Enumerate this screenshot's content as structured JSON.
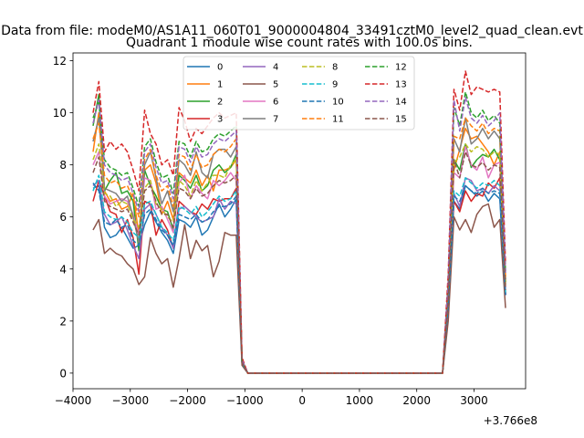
{
  "suptitle": "Data from file: modeM0/AS1A11_060T01_9000004804_33491cztM0_level2_quad_clean.evt",
  "chart_data": {
    "type": "line",
    "title": "Quadrant 1 module wise count rates with 100.0s bins.",
    "xlabel": "",
    "ylabel": "",
    "x_offset_label": "+3.766e8",
    "xlim": [
      -4000,
      3900
    ],
    "ylim": [
      -0.6,
      12.3
    ],
    "xticks": [
      -4000,
      -3000,
      -2000,
      -1000,
      0,
      1000,
      2000,
      3000
    ],
    "xtick_labels": [
      "−4000",
      "−3000",
      "−2000",
      "−1000",
      "0",
      "1000",
      "2000",
      "3000"
    ],
    "yticks": [
      0,
      2,
      4,
      6,
      8,
      10,
      12
    ],
    "ytick_labels": [
      "0",
      "2",
      "4",
      "6",
      "8",
      "10",
      "12"
    ],
    "legend_position": "top-center",
    "legend_ncol": 4,
    "x": [
      -3650,
      -3550,
      -3450,
      -3350,
      -3250,
      -3150,
      -3050,
      -2950,
      -2850,
      -2750,
      -2650,
      -2550,
      -2450,
      -2350,
      -2250,
      -2150,
      -2050,
      -1950,
      -1850,
      -1750,
      -1650,
      -1550,
      -1450,
      -1350,
      -1250,
      -1150,
      -1050,
      -950,
      -850,
      2450,
      2550,
      2650,
      2750,
      2850,
      2950,
      3050,
      3150,
      3250,
      3350,
      3450,
      3550
    ],
    "series": [
      {
        "name": "0",
        "color": "#1f77b4",
        "dash": "solid",
        "values": [
          7.1,
          7.2,
          5.6,
          5.2,
          5.3,
          5.6,
          5.2,
          4.8,
          4.9,
          5.7,
          6.2,
          5.8,
          5.4,
          5.1,
          4.6,
          5.9,
          5.8,
          5.6,
          6.0,
          5.3,
          5.5,
          6.0,
          6.5,
          6.0,
          6.3,
          6.7,
          0.4,
          0,
          0,
          0,
          2.5,
          6.6,
          6.3,
          7.2,
          7.0,
          6.8,
          7.0,
          6.6,
          6.9,
          6.7,
          3.0
        ]
      },
      {
        "name": "1",
        "color": "#ff7f0e",
        "dash": "solid",
        "values": [
          8.5,
          10.0,
          7.0,
          6.6,
          6.7,
          6.3,
          6.4,
          6.9,
          5.3,
          7.8,
          8.0,
          7.3,
          6.1,
          6.6,
          5.9,
          7.7,
          7.5,
          7.3,
          7.8,
          7.2,
          7.6,
          7.0,
          7.8,
          7.8,
          7.9,
          8.2,
          0.5,
          0,
          0,
          0,
          3.0,
          7.8,
          8.6,
          9.4,
          9.0,
          9.1,
          8.8,
          8.5,
          8.0,
          8.5,
          3.5
        ]
      },
      {
        "name": "2",
        "color": "#2ca02c",
        "dash": "solid",
        "values": [
          9.5,
          10.7,
          7.0,
          7.4,
          7.7,
          6.9,
          7.0,
          6.6,
          4.7,
          7.8,
          7.2,
          6.8,
          6.3,
          6.2,
          5.5,
          7.6,
          7.4,
          7.1,
          7.6,
          7.0,
          7.2,
          7.8,
          8.0,
          7.7,
          7.9,
          8.4,
          0.5,
          0,
          0,
          0,
          3.1,
          8.2,
          7.8,
          8.8,
          7.9,
          8.2,
          8.4,
          8.3,
          8.6,
          8.2,
          3.5
        ]
      },
      {
        "name": "3",
        "color": "#d62728",
        "dash": "solid",
        "values": [
          6.6,
          7.4,
          6.8,
          6.2,
          6.1,
          5.4,
          5.9,
          5.2,
          3.8,
          6.6,
          6.5,
          5.3,
          5.9,
          5.5,
          4.8,
          6.6,
          6.4,
          6.2,
          6.1,
          6.5,
          6.3,
          6.7,
          6.6,
          6.7,
          6.7,
          7.1,
          0.4,
          0,
          0,
          0,
          2.6,
          6.6,
          6.2,
          7.0,
          6.6,
          6.9,
          6.8,
          7.3,
          7.1,
          7.5,
          3.0
        ]
      },
      {
        "name": "4",
        "color": "#9467bd",
        "dash": "solid",
        "values": [
          7.2,
          7.4,
          6.1,
          5.7,
          5.8,
          6.0,
          5.5,
          4.9,
          4.4,
          6.3,
          6.5,
          6.1,
          5.6,
          5.3,
          4.8,
          6.3,
          6.4,
          6.2,
          6.0,
          5.8,
          5.9,
          6.0,
          6.7,
          6.3,
          6.6,
          6.5,
          0.4,
          0,
          0,
          0,
          2.6,
          6.9,
          6.4,
          7.5,
          7.4,
          7.0,
          7.1,
          6.9,
          7.2,
          7.0,
          3.0
        ]
      },
      {
        "name": "5",
        "color": "#8c564b",
        "dash": "solid",
        "values": [
          5.5,
          5.9,
          4.6,
          4.8,
          4.6,
          4.5,
          4.2,
          4.0,
          3.4,
          3.7,
          5.2,
          4.6,
          4.2,
          4.4,
          3.3,
          4.4,
          5.7,
          4.4,
          5.1,
          4.7,
          4.9,
          3.7,
          4.3,
          5.4,
          5.3,
          5.3,
          0.3,
          0,
          0,
          0,
          2.0,
          6.0,
          5.5,
          5.9,
          5.4,
          6.1,
          6.4,
          6.5,
          5.6,
          5.9,
          2.5
        ]
      },
      {
        "name": "6",
        "color": "#e377c2",
        "dash": "solid",
        "values": [
          8.0,
          8.5,
          6.8,
          6.5,
          6.6,
          6.7,
          6.6,
          6.1,
          5.3,
          7.5,
          7.4,
          6.3,
          6.4,
          5.9,
          5.4,
          7.3,
          7.6,
          6.7,
          7.2,
          6.9,
          6.7,
          7.4,
          7.2,
          7.4,
          7.7,
          7.4,
          0.5,
          0,
          0,
          0,
          2.9,
          7.7,
          7.5,
          8.7,
          8.0,
          7.8,
          8.3,
          7.5,
          8.0,
          8.1,
          3.3
        ]
      },
      {
        "name": "7",
        "color": "#7f7f7f",
        "dash": "solid",
        "values": [
          8.9,
          9.8,
          7.1,
          7.0,
          6.9,
          6.6,
          6.8,
          6.0,
          5.0,
          8.0,
          8.5,
          7.5,
          6.5,
          7.0,
          6.2,
          8.2,
          8.0,
          7.6,
          8.5,
          7.7,
          7.5,
          8.4,
          8.6,
          8.6,
          8.3,
          8.7,
          0.5,
          0,
          0,
          0,
          3.2,
          9.0,
          8.5,
          9.8,
          8.8,
          9.0,
          9.4,
          9.0,
          9.3,
          9.0,
          3.6
        ]
      },
      {
        "name": "8",
        "color": "#bcbd22",
        "dash": "dashed",
        "values": [
          8.2,
          8.8,
          6.9,
          6.8,
          6.4,
          6.6,
          6.5,
          5.9,
          5.6,
          7.1,
          7.4,
          6.5,
          6.3,
          6.0,
          5.8,
          7.4,
          7.2,
          6.8,
          7.4,
          7.0,
          7.3,
          7.6,
          7.6,
          7.5,
          8.0,
          8.2,
          0.5,
          0,
          0,
          0,
          3.0,
          8.1,
          8.3,
          8.8,
          8.5,
          8.7,
          8.6,
          8.3,
          8.5,
          8.4,
          3.4
        ]
      },
      {
        "name": "9",
        "color": "#17becf",
        "dash": "dashed",
        "values": [
          7.0,
          7.6,
          6.2,
          6.0,
          5.9,
          6.0,
          5.8,
          5.4,
          5.2,
          6.5,
          6.6,
          6.1,
          5.6,
          5.4,
          5.1,
          6.4,
          6.3,
          6.1,
          6.4,
          6.0,
          6.2,
          6.5,
          6.8,
          6.6,
          6.7,
          7.0,
          0.4,
          0,
          0,
          0,
          2.7,
          7.0,
          6.8,
          7.5,
          7.3,
          7.1,
          7.3,
          7.2,
          7.4,
          7.2,
          3.1
        ]
      },
      {
        "name": "10",
        "color": "#1f77b4",
        "dash": "dashed",
        "values": [
          7.3,
          7.0,
          5.8,
          5.7,
          5.9,
          5.6,
          5.7,
          5.1,
          4.9,
          6.1,
          6.3,
          5.9,
          5.5,
          5.3,
          4.9,
          6.1,
          6.0,
          5.9,
          6.1,
          5.8,
          5.9,
          6.2,
          6.4,
          6.4,
          6.5,
          6.8,
          0.4,
          0,
          0,
          0,
          2.6,
          6.8,
          6.6,
          7.2,
          7.0,
          6.9,
          7.1,
          6.9,
          7.0,
          6.9,
          3.0
        ]
      },
      {
        "name": "11",
        "color": "#ff7f0e",
        "dash": "dashed",
        "values": [
          9.0,
          9.6,
          7.6,
          7.3,
          7.4,
          7.1,
          7.2,
          6.7,
          6.0,
          8.2,
          8.6,
          7.6,
          7.0,
          7.2,
          6.4,
          8.4,
          8.3,
          7.8,
          8.4,
          7.9,
          8.0,
          8.4,
          8.6,
          8.5,
          8.7,
          9.0,
          0.5,
          0,
          0,
          0,
          3.3,
          9.1,
          9.0,
          9.8,
          9.5,
          9.3,
          9.6,
          9.2,
          9.4,
          9.3,
          3.7
        ]
      },
      {
        "name": "12",
        "color": "#2ca02c",
        "dash": "dashed",
        "values": [
          9.8,
          10.4,
          8.2,
          7.9,
          7.8,
          7.6,
          7.7,
          7.1,
          6.4,
          8.7,
          9.0,
          8.1,
          7.5,
          7.6,
          6.9,
          8.9,
          8.8,
          8.3,
          8.9,
          8.5,
          8.6,
          9.0,
          9.2,
          9.1,
          9.3,
          9.5,
          0.5,
          0,
          0,
          0,
          3.5,
          10.2,
          9.5,
          10.8,
          10.0,
          9.8,
          10.1,
          9.7,
          9.9,
          9.6,
          3.9
        ]
      },
      {
        "name": "13",
        "color": "#d62728",
        "dash": "dashed",
        "values": [
          10.0,
          11.2,
          8.5,
          8.9,
          8.6,
          8.8,
          8.5,
          7.8,
          7.0,
          10.1,
          9.2,
          8.8,
          8.0,
          8.2,
          7.6,
          10.2,
          9.7,
          8.9,
          9.4,
          9.2,
          9.5,
          9.8,
          10.0,
          9.8,
          9.9,
          10.0,
          0.6,
          0,
          0,
          0,
          3.8,
          10.9,
          10.1,
          11.6,
          10.7,
          11.0,
          10.9,
          10.8,
          10.9,
          10.8,
          4.2
        ]
      },
      {
        "name": "14",
        "color": "#9467bd",
        "dash": "dashed",
        "values": [
          9.6,
          10.5,
          8.0,
          7.7,
          7.6,
          7.4,
          7.5,
          6.9,
          6.2,
          8.5,
          8.8,
          7.9,
          7.3,
          7.4,
          6.7,
          8.7,
          8.6,
          8.1,
          8.7,
          8.3,
          8.4,
          8.8,
          9.0,
          8.9,
          9.1,
          9.3,
          0.5,
          0,
          0,
          0,
          3.4,
          10.5,
          9.3,
          10.6,
          9.8,
          9.6,
          9.9,
          9.5,
          9.7,
          10.0,
          3.8
        ]
      },
      {
        "name": "15",
        "color": "#8c564b",
        "dash": "dashed",
        "values": [
          7.7,
          8.3,
          6.6,
          6.4,
          6.3,
          6.2,
          6.3,
          5.8,
          5.3,
          7.0,
          7.2,
          6.6,
          6.1,
          6.1,
          5.6,
          7.1,
          7.0,
          6.7,
          7.1,
          6.8,
          6.9,
          7.2,
          7.4,
          7.3,
          7.4,
          7.6,
          0.4,
          0,
          0,
          0,
          2.8,
          8.2,
          7.5,
          8.5,
          8.0,
          7.9,
          8.1,
          7.8,
          8.0,
          7.9,
          3.2
        ]
      }
    ]
  }
}
